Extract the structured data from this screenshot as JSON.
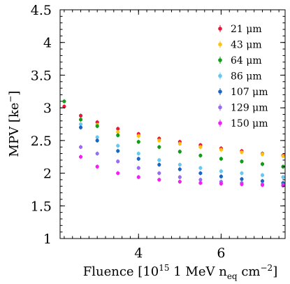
{
  "chart_data": {
    "type": "scatter",
    "xlabel": "Fluence [10^15 1 MeV n_eq cm^-2]",
    "ylabel": "MPV [ke^-]",
    "xlim": [
      2.1,
      7.55
    ],
    "ylim": [
      1.0,
      4.5
    ],
    "x_ticks": [
      4,
      6
    ],
    "x_tick_labels": [
      "4",
      "6"
    ],
    "y_ticks": [
      1,
      1.5,
      2,
      2.5,
      3,
      3.5,
      4,
      4.5
    ],
    "y_tick_labels": [
      "1",
      "1.5",
      "2",
      "2.5",
      "3",
      "3.5",
      "4",
      "4.5"
    ],
    "grid": false,
    "legend_position": "top-right",
    "series": [
      {
        "name": "21 μm",
        "color": "#e8173a",
        "x": [
          2.2,
          2.6,
          3.0,
          3.5,
          4.0,
          4.5,
          5.0,
          5.5,
          6.0,
          6.5,
          7.0,
          7.5
        ],
        "values": [
          3.02,
          2.88,
          2.78,
          2.68,
          2.6,
          2.53,
          2.48,
          2.43,
          2.38,
          2.34,
          2.3,
          2.27
        ]
      },
      {
        "name": "43 μm",
        "color": "#ffc20e",
        "x": [
          2.6,
          3.0,
          3.5,
          4.0,
          4.5,
          5.0,
          5.5,
          6.0,
          6.5,
          7.0,
          7.5
        ],
        "values": [
          2.82,
          2.74,
          2.63,
          2.57,
          2.5,
          2.45,
          2.4,
          2.36,
          2.32,
          2.29,
          2.26
        ]
      },
      {
        "name": "64 μm",
        "color": "#129c1a",
        "x": [
          2.2,
          2.6,
          3.0,
          3.5,
          4.0,
          4.5,
          5.0,
          5.5,
          6.0,
          6.5,
          7.0,
          7.5
        ],
        "values": [
          3.1,
          2.82,
          2.72,
          2.58,
          2.48,
          2.4,
          2.33,
          2.27,
          2.22,
          2.18,
          2.14,
          2.1
        ]
      },
      {
        "name": "86 μm",
        "color": "#66c8f0",
        "x": [
          2.6,
          3.0,
          3.5,
          4.0,
          4.5,
          5.0,
          5.5,
          6.0,
          6.5,
          7.0,
          7.5
        ],
        "values": [
          2.75,
          2.55,
          2.42,
          2.3,
          2.2,
          2.13,
          2.08,
          2.03,
          2.0,
          1.97,
          1.94
        ]
      },
      {
        "name": "107 μm",
        "color": "#1a66c2",
        "x": [
          2.6,
          3.0,
          3.5,
          4.0,
          4.5,
          5.0,
          5.5,
          6.0,
          6.5,
          7.0,
          7.5
        ],
        "values": [
          2.7,
          2.5,
          2.34,
          2.22,
          2.13,
          2.06,
          2.0,
          1.95,
          1.91,
          1.88,
          1.85
        ]
      },
      {
        "name": "129 μm",
        "color": "#9a6cf0",
        "x": [
          2.6,
          3.0,
          3.5,
          4.0,
          4.5,
          5.0,
          5.5,
          6.0,
          6.5,
          7.0,
          7.5
        ],
        "values": [
          2.4,
          2.3,
          2.18,
          2.08,
          2.0,
          1.94,
          1.9,
          1.87,
          1.85,
          1.83,
          1.82
        ]
      },
      {
        "name": "150 μm",
        "color": "#f21ef2",
        "x": [
          2.6,
          3.0,
          3.5,
          4.0,
          4.5,
          5.0,
          5.5,
          6.0,
          6.5,
          7.0,
          7.5
        ],
        "values": [
          2.25,
          2.1,
          2.0,
          1.94,
          1.9,
          1.87,
          1.85,
          1.84,
          1.83,
          1.82,
          1.81
        ]
      }
    ]
  }
}
